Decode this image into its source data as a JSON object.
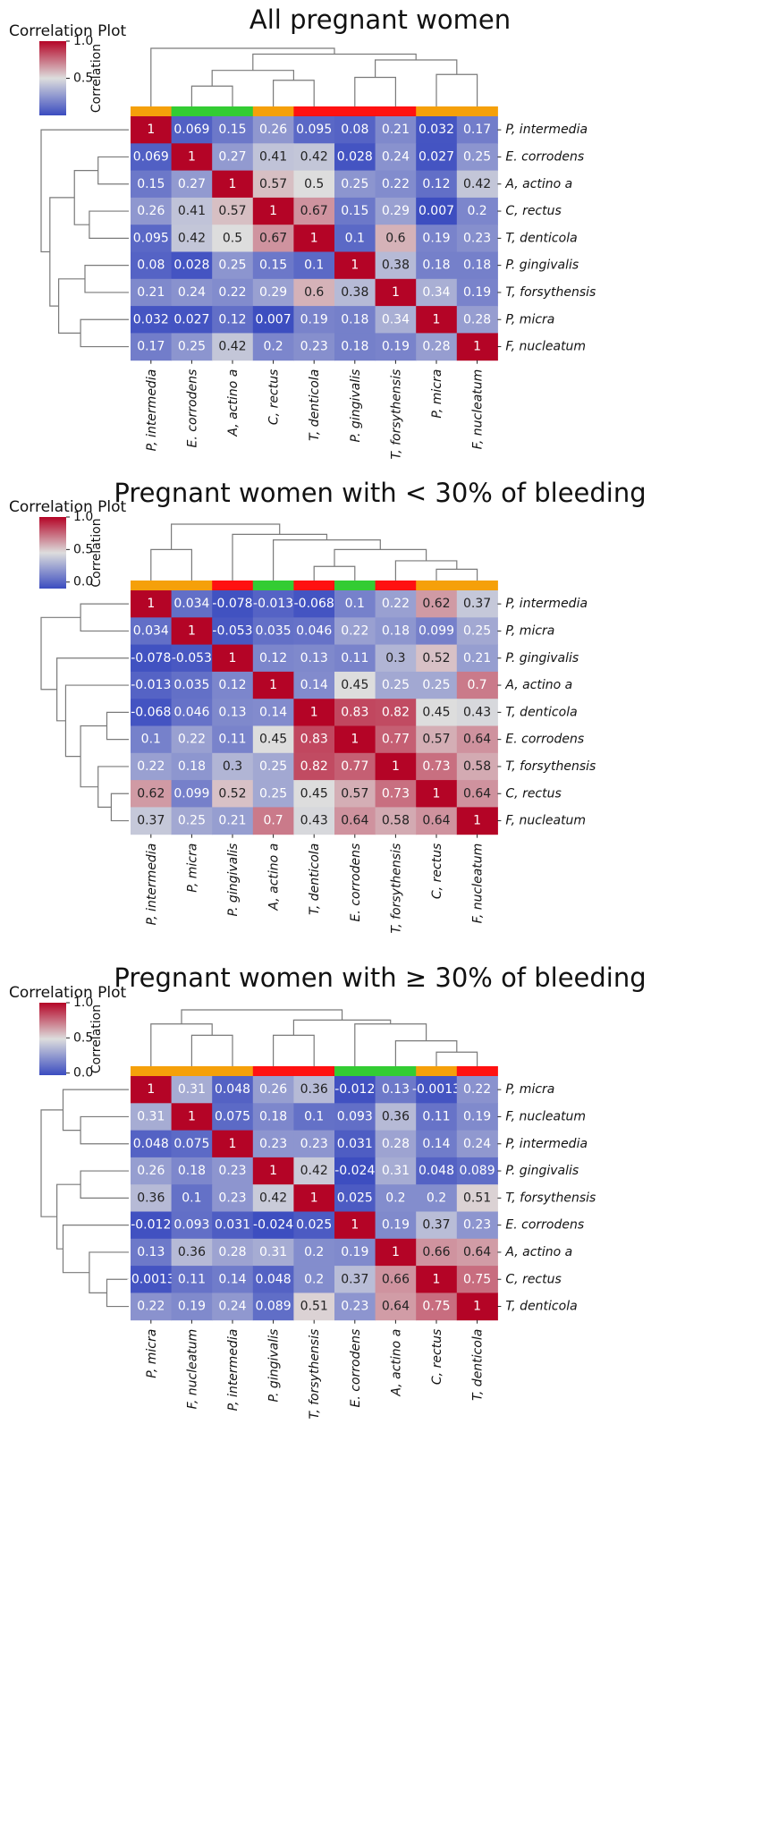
{
  "figure": {
    "cluster_colors": {
      "orange": "#f5a00a",
      "green": "#33cc33",
      "red": "#ff1111"
    },
    "colormap": {
      "low": "#3b4cc0",
      "mid": "#dddddd",
      "high": "#b40426"
    }
  },
  "chart_data": [
    {
      "type": "heatmap",
      "title": "All pregnant women",
      "colorbar": {
        "title": "Correlation Plot",
        "label": "Correlation",
        "ticks": [
          "0.5",
          "1.0"
        ],
        "range": [
          0.0,
          1.0
        ]
      },
      "rows": [
        "P, intermedia",
        "E. corrodens",
        "A, actino a",
        "C, rectus",
        "T, denticola",
        "P. gingivalis",
        "T, forsythensis",
        "P, micra",
        "F, nucleatum"
      ],
      "columns": [
        "P, intermedia",
        "E. corrodens",
        "A, actino a",
        "C, rectus",
        "T, denticola",
        "P. gingivalis",
        "T, forsythensis",
        "P, micra",
        "F, nucleatum"
      ],
      "column_clusters": [
        "orange",
        "green",
        "green",
        "orange",
        "red",
        "red",
        "red",
        "orange",
        "orange"
      ],
      "cell_labels": [
        [
          "1",
          "0.069",
          "0.15",
          "0.26",
          "0.095",
          "0.08",
          "0.21",
          "0.032",
          "0.17"
        ],
        [
          "0.069",
          "1",
          "0.27",
          "0.41",
          "0.42",
          "0.028",
          "0.24",
          "0.027",
          "0.25"
        ],
        [
          "0.15",
          "0.27",
          "1",
          "0.57",
          "0.5",
          "0.25",
          "0.22",
          "0.12",
          "0.42"
        ],
        [
          "0.26",
          "0.41",
          "0.57",
          "1",
          "0.67",
          "0.15",
          "0.29",
          "0.007",
          "0.2"
        ],
        [
          "0.095",
          "0.42",
          "0.5",
          "0.67",
          "1",
          "0.1",
          "0.6",
          "0.19",
          "0.23"
        ],
        [
          "0.08",
          "0.028",
          "0.25",
          "0.15",
          "0.1",
          "1",
          "0.38",
          "0.18",
          "0.18"
        ],
        [
          "0.21",
          "0.24",
          "0.22",
          "0.29",
          "0.6",
          "0.38",
          "1",
          "0.34",
          "0.19"
        ],
        [
          "0.032",
          "0.027",
          "0.12",
          "0.007",
          "0.19",
          "0.18",
          "0.34",
          "1",
          "0.28"
        ],
        [
          "0.17",
          "0.25",
          "0.42",
          "0.2",
          "0.23",
          "0.18",
          "0.19",
          "0.28",
          "1"
        ]
      ]
    },
    {
      "type": "heatmap",
      "title": "Pregnant women with < 30% of bleeding",
      "colorbar": {
        "title": "Correlation Plot",
        "label": "Correlation",
        "ticks": [
          "0.0",
          "0.5",
          "1.0"
        ],
        "range": [
          -0.1,
          1.0
        ]
      },
      "rows": [
        "P, intermedia",
        "P, micra",
        "P. gingivalis",
        "A, actino a",
        "T, denticola",
        "E. corrodens",
        "T, forsythensis",
        "C, rectus",
        "F, nucleatum"
      ],
      "columns": [
        "P, intermedia",
        "P, micra",
        "P. gingivalis",
        "A, actino a",
        "T, denticola",
        "E. corrodens",
        "T, forsythensis",
        "C, rectus",
        "F, nucleatum"
      ],
      "column_clusters": [
        "orange",
        "orange",
        "red",
        "green",
        "red",
        "green",
        "red",
        "orange",
        "orange"
      ],
      "cell_labels": [
        [
          "1",
          "0.034",
          "-0.078",
          "-0.013",
          "-0.068",
          "0.1",
          "0.22",
          "0.62",
          "0.37"
        ],
        [
          "0.034",
          "1",
          "-0.053",
          "0.035",
          "0.046",
          "0.22",
          "0.18",
          "0.099",
          "0.25"
        ],
        [
          "-0.078",
          "-0.053",
          "1",
          "0.12",
          "0.13",
          "0.11",
          "0.3",
          "0.52",
          "0.21"
        ],
        [
          "-0.013",
          "0.035",
          "0.12",
          "1",
          "0.14",
          "0.45",
          "0.25",
          "0.25",
          "0.7"
        ],
        [
          "-0.068",
          "0.046",
          "0.13",
          "0.14",
          "1",
          "0.83",
          "0.82",
          "0.45",
          "0.43"
        ],
        [
          "0.1",
          "0.22",
          "0.11",
          "0.45",
          "0.83",
          "1",
          "0.77",
          "0.57",
          "0.64"
        ],
        [
          "0.22",
          "0.18",
          "0.3",
          "0.25",
          "0.82",
          "0.77",
          "1",
          "0.73",
          "0.58"
        ],
        [
          "0.62",
          "0.099",
          "0.52",
          "0.25",
          "0.45",
          "0.57",
          "0.73",
          "1",
          "0.64"
        ],
        [
          "0.37",
          "0.25",
          "0.21",
          "0.7",
          "0.43",
          "0.64",
          "0.58",
          "0.64",
          "1"
        ]
      ]
    },
    {
      "type": "heatmap",
      "title": "Pregnant women with ≥ 30% of bleeding",
      "colorbar": {
        "title": "Correlation Plot",
        "label": "Correlation",
        "ticks": [
          "0.0",
          "0.5",
          "1.0"
        ],
        "range": [
          -0.03,
          1.0
        ]
      },
      "rows": [
        "P, micra",
        "F, nucleatum",
        "P, intermedia",
        "P. gingivalis",
        "T, forsythensis",
        "E. corrodens",
        "A, actino a",
        "C, rectus",
        "T, denticola"
      ],
      "columns": [
        "P, micra",
        "F, nucleatum",
        "P, intermedia",
        "P. gingivalis",
        "T, forsythensis",
        "E. corrodens",
        "A, actino a",
        "C, rectus",
        "T, denticola"
      ],
      "column_clusters": [
        "orange",
        "orange",
        "orange",
        "red",
        "red",
        "green",
        "green",
        "orange",
        "red"
      ],
      "cell_labels": [
        [
          "1",
          "0.31",
          "0.048",
          "0.26",
          "0.36",
          "-0.012",
          "0.13",
          "-0.0013",
          "0.22"
        ],
        [
          "0.31",
          "1",
          "0.075",
          "0.18",
          "0.1",
          "0.093",
          "0.36",
          "0.11",
          "0.19"
        ],
        [
          "0.048",
          "0.075",
          "1",
          "0.23",
          "0.23",
          "0.031",
          "0.28",
          "0.14",
          "0.24"
        ],
        [
          "0.26",
          "0.18",
          "0.23",
          "1",
          "0.42",
          "-0.024",
          "0.31",
          "0.048",
          "0.089"
        ],
        [
          "0.36",
          "0.1",
          "0.23",
          "0.42",
          "1",
          "0.025",
          "0.2",
          "0.2",
          "0.51"
        ],
        [
          "-0.012",
          "0.093",
          "0.031",
          "-0.024",
          "0.025",
          "1",
          "0.19",
          "0.37",
          "0.23"
        ],
        [
          "0.13",
          "0.36",
          "0.28",
          "0.31",
          "0.2",
          "0.19",
          "1",
          "0.66",
          "0.64"
        ],
        [
          "-0.0013",
          "0.11",
          "0.14",
          "0.048",
          "0.2",
          "0.37",
          "0.66",
          "1",
          "0.75"
        ],
        [
          "0.22",
          "0.19",
          "0.24",
          "0.089",
          "0.51",
          "0.23",
          "0.64",
          "0.75",
          "1"
        ]
      ]
    }
  ]
}
